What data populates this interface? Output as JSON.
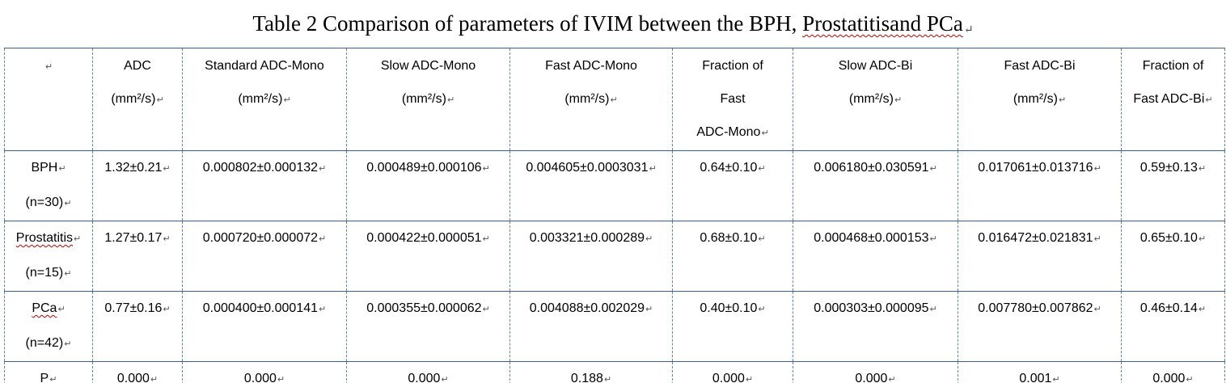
{
  "title": {
    "prefix": "Table 2 Comparison of parameters of IVIM between the BPH, ",
    "underlined": "Prostatitisand PCa",
    "mark": "↵"
  },
  "mark": "↵",
  "columns": [
    {
      "lines": [
        ""
      ]
    },
    {
      "lines": [
        "ADC",
        "(mm²/s)"
      ]
    },
    {
      "lines": [
        "Standard ADC-Mono",
        "(mm²/s)"
      ]
    },
    {
      "lines": [
        "Slow ADC-Mono",
        "(mm²/s)"
      ]
    },
    {
      "lines": [
        "Fast ADC-Mono",
        "(mm²/s)"
      ]
    },
    {
      "lines": [
        "Fraction of",
        "Fast",
        "ADC-Mono"
      ]
    },
    {
      "lines": [
        "Slow ADC-Bi",
        "(mm²/s)"
      ]
    },
    {
      "lines": [
        "Fast ADC-Bi",
        "(mm²/s)"
      ]
    },
    {
      "lines": [
        "Fraction of",
        "Fast ADC-Bi"
      ]
    }
  ],
  "rows": [
    {
      "group": "BPH",
      "n": "(n=30)",
      "values": [
        "1.32±0.21",
        "0.000802±0.000132",
        "0.000489±0.000106",
        "0.004605±0.0003031",
        "0.64±0.10",
        "0.006180±0.030591",
        "0.017061±0.013716",
        "0.59±0.13"
      ]
    },
    {
      "group": "Prostatitis",
      "n": "(n=15)",
      "values": [
        "1.27±0.17",
        "0.000720±0.000072",
        "0.000422±0.000051",
        "0.003321±0.000289",
        "0.68±0.10",
        "0.000468±0.000153",
        "0.016472±0.021831",
        "0.65±0.10"
      ]
    },
    {
      "group": "PCa",
      "n": "(n=42)",
      "values": [
        "0.77±0.16",
        "0.000400±0.000141",
        "0.000355±0.000062",
        "0.004088±0.002029",
        "0.40±0.10",
        "0.000303±0.000095",
        "0.007780±0.007862",
        "0.46±0.14"
      ]
    },
    {
      "group": "P",
      "n": "",
      "values": [
        "0.000",
        "0.000",
        "0.000",
        "0.188",
        "0.000",
        "0.000",
        "0.001",
        "0.000"
      ]
    }
  ]
}
